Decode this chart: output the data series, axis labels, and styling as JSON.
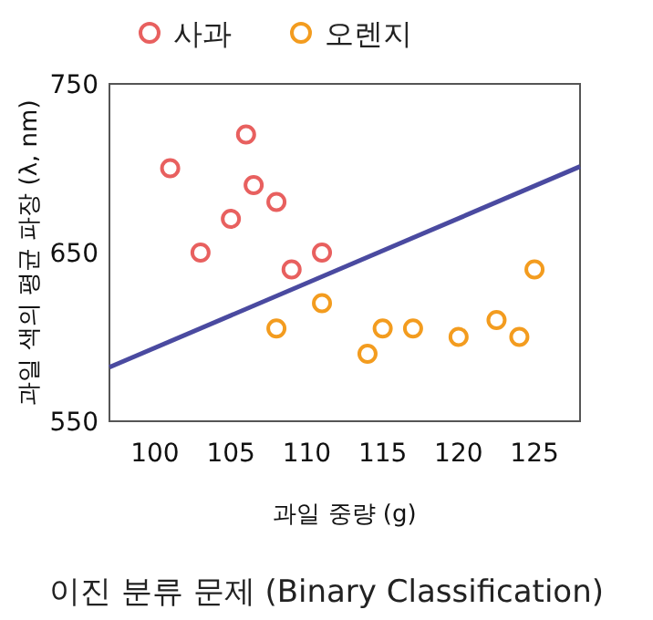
{
  "chart_data": {
    "type": "scatter",
    "title": "이진 분류 문제 (Binary Classification)",
    "xlabel": "과일 중량 (g)",
    "ylabel": "과일 색의 평균 파장 (λ, nm)",
    "xlim": [
      97,
      128
    ],
    "ylim": [
      550,
      750
    ],
    "xticks": [
      100,
      105,
      110,
      115,
      120,
      125
    ],
    "yticks": [
      550,
      650,
      750
    ],
    "legend": "top",
    "series": [
      {
        "name": "사과",
        "color": "#e8605f",
        "marker": "circle",
        "x": [
          101,
          103,
          105,
          106,
          106.5,
          108,
          109,
          111
        ],
        "values": [
          700,
          650,
          670,
          720,
          690,
          680,
          640,
          650
        ]
      },
      {
        "name": "오렌지",
        "color": "#f39c1f",
        "marker": "circle",
        "x": [
          108,
          111,
          114,
          115,
          117,
          120,
          122.5,
          124,
          125
        ],
        "values": [
          605,
          620,
          590,
          605,
          605,
          600,
          610,
          600,
          640
        ]
      },
      {
        "type": "line",
        "color": "#4a4aa0",
        "marker": "none",
        "x": [
          97,
          128
        ],
        "values": [
          582,
          701
        ]
      }
    ]
  }
}
